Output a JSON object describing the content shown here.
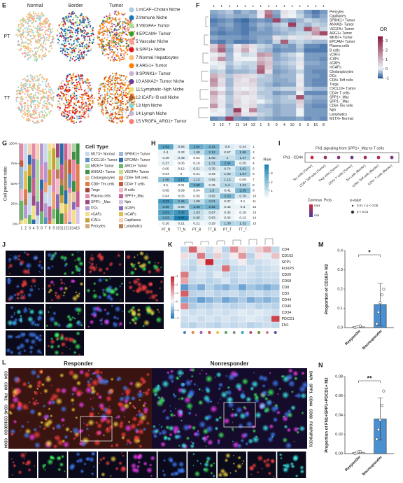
{
  "panels": {
    "E": "E",
    "F": "F",
    "G": "G",
    "H": "H",
    "I": "I",
    "J": "J",
    "K": "K",
    "L": "L",
    "M": "M",
    "N": "N"
  },
  "E": {
    "columns": [
      "Normal",
      "Border",
      "Tumor"
    ],
    "rows": [
      "PT",
      "TT"
    ],
    "niches": [
      {
        "name": "1:mCAF−Cholan Niche",
        "color": "#a6cee3"
      },
      {
        "name": "2:Immune Niche",
        "color": "#1f78b4"
      },
      {
        "name": "3:VEGFA+ Tumor",
        "color": "#b2df8a"
      },
      {
        "name": "4:EPCAM+ Tumor",
        "color": "#33a02c"
      },
      {
        "name": "5:Vascular Niche",
        "color": "#fb9a99"
      },
      {
        "name": "6:SPP1+ Niche",
        "color": "#e31a1c"
      },
      {
        "name": "7:Normal Hepatocytes",
        "color": "#fdbf6f"
      },
      {
        "name": "8:ARG1+ Tumor",
        "color": "#ff7f00"
      },
      {
        "name": "9:SPINK1+ Tumor",
        "color": "#cab2d6"
      },
      {
        "name": "10:ANXA2+ Tumor Niche",
        "color": "#6a3d9a"
      },
      {
        "name": "11:Lymphatic−Nph Niche",
        "color": "#e8e070"
      },
      {
        "name": "12:iCAFs−B cell Niche",
        "color": "#b15928"
      },
      {
        "name": "13:Nph Niche",
        "color": "#8dd3c7"
      },
      {
        "name": "14:Lymph Niche",
        "color": "#bebada"
      },
      {
        "name": "15:VRGFA_ARG1+ Tumor",
        "color": "#fb8072"
      }
    ]
  },
  "F": {
    "type": "heatmap",
    "legend_title": "OR",
    "clim": [
      -1,
      3.5
    ],
    "ticks": [
      -1,
      0,
      1,
      2,
      3
    ],
    "top_labels": [
      "1",
      "1",
      "1",
      "1",
      "1",
      "1",
      "1",
      "1",
      "1",
      "1",
      "1",
      "1",
      "1",
      "1",
      "1"
    ],
    "columns": [
      "2",
      "12",
      "7",
      "11",
      "14",
      "13",
      "1",
      "5",
      "9",
      "4",
      "10",
      "6",
      "3",
      "15",
      "8"
    ],
    "rows": [
      "Pericytes",
      "Capillaries",
      "SPINK1+ Tumor",
      "ANXA2+ Tumor",
      "VEGFA+ Tumor",
      "ARG1+ Tumor",
      "MKI67+ Tumor",
      "EPCAM+ Tumor",
      "Plasma cells",
      "B cells",
      "vCAFs",
      "iCAFs",
      "aCAFs",
      "mCAFs",
      "Cholangiocytes",
      "DCs",
      "CD8+ Teff cells",
      "Tregs",
      "CXCL10+ Tumor",
      "CD4+ T cells",
      "SPP1+_Mac",
      "SPP1−_Mac",
      "CD8+ Tex cells",
      "Nph",
      "Lymphatics",
      "M1TX+ Normal"
    ],
    "values": [
      [
        -0.5,
        -0.4,
        -0.3,
        -0.6,
        -0.4,
        -0.5,
        0.2,
        1.8,
        -0.5,
        0.3,
        0.1,
        -0.3,
        -0.6,
        -0.8,
        -0.6
      ],
      [
        -0.6,
        -0.5,
        -0.4,
        -0.5,
        -0.5,
        -0.4,
        0.1,
        2.2,
        -0.6,
        0.2,
        0.0,
        -0.2,
        -0.5,
        -0.7,
        -0.5
      ],
      [
        -0.8,
        -0.7,
        -0.6,
        -0.8,
        -0.9,
        -0.7,
        -0.6,
        -0.7,
        2.8,
        -0.5,
        -0.6,
        -0.4,
        -0.2,
        -0.3,
        -0.4
      ],
      [
        -0.7,
        -0.6,
        -0.5,
        -0.7,
        -0.8,
        -0.6,
        -0.4,
        -0.5,
        -0.3,
        -0.2,
        2.9,
        -0.3,
        -0.4,
        -0.2,
        -0.3
      ],
      [
        -0.6,
        -0.7,
        -0.6,
        -0.7,
        -0.8,
        -0.7,
        -0.5,
        -0.6,
        -0.4,
        -0.3,
        -0.4,
        -0.3,
        2.6,
        1.2,
        -0.2
      ],
      [
        -0.7,
        -0.8,
        -0.7,
        -0.7,
        -0.8,
        -0.6,
        -0.6,
        -0.6,
        -0.5,
        -0.4,
        -0.3,
        -0.2,
        -0.2,
        1.5,
        2.7
      ],
      [
        -0.5,
        -0.6,
        -0.6,
        -0.6,
        -0.7,
        -0.6,
        -0.5,
        -0.5,
        0.3,
        -0.2,
        0.2,
        -0.1,
        0.4,
        0.2,
        0.1
      ],
      [
        -0.7,
        -0.8,
        -0.6,
        -0.8,
        -0.8,
        -0.7,
        -0.5,
        -0.6,
        -0.2,
        2.4,
        -0.3,
        -0.2,
        -0.3,
        -0.4,
        -0.4
      ],
      [
        0.6,
        1.9,
        -0.4,
        0.2,
        0.8,
        0.3,
        -0.2,
        -0.3,
        -0.6,
        -0.5,
        -0.6,
        -0.3,
        -0.7,
        -0.7,
        -0.8
      ],
      [
        0.9,
        2.3,
        -0.5,
        0.3,
        1.2,
        0.2,
        -0.3,
        -0.4,
        -0.7,
        -0.6,
        -0.6,
        -0.4,
        -0.8,
        -0.8,
        -0.8
      ],
      [
        0.1,
        0.4,
        -0.4,
        0.0,
        -0.2,
        -0.1,
        1.5,
        1.2,
        -0.5,
        -0.3,
        -0.2,
        0.1,
        -0.6,
        -0.6,
        -0.6
      ],
      [
        0.3,
        1.6,
        -0.4,
        0.1,
        0.0,
        0.0,
        0.9,
        0.6,
        -0.5,
        -0.4,
        -0.3,
        -0.1,
        -0.6,
        -0.6,
        -0.7
      ],
      [
        0.0,
        0.2,
        -0.3,
        -0.1,
        -0.2,
        -0.2,
        1.3,
        0.8,
        -0.4,
        -0.3,
        -0.2,
        0.2,
        -0.5,
        -0.5,
        -0.6
      ],
      [
        -0.1,
        0.1,
        -0.4,
        -0.2,
        -0.3,
        -0.2,
        2.1,
        0.7,
        -0.5,
        -0.4,
        -0.3,
        0.1,
        -0.6,
        -0.6,
        -0.6
      ],
      [
        -0.3,
        -0.2,
        -0.5,
        -0.4,
        -0.4,
        -0.3,
        2.4,
        0.3,
        -0.6,
        -0.5,
        -0.4,
        -0.2,
        -0.6,
        -0.7,
        -0.7
      ],
      [
        1.1,
        0.6,
        -0.3,
        0.5,
        0.4,
        0.3,
        -0.2,
        -0.3,
        -0.5,
        -0.4,
        -0.4,
        0.1,
        -0.6,
        -0.6,
        -0.7
      ],
      [
        1.6,
        0.3,
        -0.4,
        0.4,
        0.2,
        0.6,
        -0.3,
        -0.3,
        -0.5,
        -0.5,
        -0.4,
        0.2,
        -0.6,
        -0.7,
        -0.7
      ],
      [
        1.4,
        0.4,
        -0.4,
        0.3,
        0.3,
        0.4,
        -0.3,
        -0.4,
        -0.6,
        -0.5,
        -0.5,
        0.1,
        -0.6,
        -0.7,
        -0.7
      ],
      [
        0.4,
        0.0,
        -0.3,
        0.2,
        0.0,
        0.2,
        -0.2,
        -0.3,
        -0.3,
        -0.2,
        -0.2,
        0.3,
        -0.3,
        -0.4,
        -0.4
      ],
      [
        1.3,
        0.5,
        -0.4,
        0.4,
        0.6,
        0.3,
        -0.3,
        -0.3,
        -0.6,
        -0.5,
        -0.5,
        0.0,
        -0.7,
        -0.7,
        -0.7
      ],
      [
        0.8,
        0.1,
        -0.3,
        0.3,
        0.1,
        0.2,
        -0.2,
        -0.3,
        -0.4,
        -0.3,
        -0.2,
        2.6,
        -0.4,
        -0.5,
        -0.5
      ],
      [
        0.7,
        0.2,
        -0.3,
        0.5,
        0.1,
        0.3,
        0.0,
        -0.2,
        -0.4,
        -0.3,
        -0.3,
        0.6,
        -0.5,
        -0.6,
        -0.6
      ],
      [
        1.5,
        0.2,
        -0.4,
        0.4,
        0.2,
        0.4,
        -0.3,
        -0.4,
        -0.5,
        -0.4,
        -0.4,
        0.4,
        -0.6,
        -0.7,
        -0.7
      ],
      [
        0.2,
        0.0,
        -0.3,
        2.9,
        0.1,
        1.8,
        -0.3,
        -0.3,
        -0.5,
        -0.4,
        -0.4,
        0.0,
        -0.6,
        -0.6,
        -0.6
      ],
      [
        0.0,
        0.1,
        -0.3,
        1.4,
        0.2,
        0.3,
        -0.2,
        -0.3,
        -0.5,
        -0.4,
        -0.4,
        0.0,
        -0.6,
        -0.6,
        -0.6
      ],
      [
        -0.7,
        -0.6,
        2.9,
        -0.6,
        -0.7,
        -0.6,
        -0.4,
        -0.5,
        -0.6,
        -0.6,
        -0.6,
        -0.5,
        -0.7,
        -0.6,
        -0.7
      ]
    ]
  },
  "G": {
    "y_label": "Cell percent ratio",
    "yticks": [
      {
        "value": 0,
        "label": "0%"
      },
      {
        "value": 25,
        "label": "25%"
      },
      {
        "value": 50,
        "label": "50%"
      },
      {
        "value": 75,
        "label": "75%"
      },
      {
        "value": 100,
        "label": "100%"
      }
    ],
    "ylim": [
      0,
      100
    ],
    "categories": [
      "1",
      "2",
      "3",
      "4",
      "5",
      "6",
      "7",
      "8",
      "9",
      "10",
      "11",
      "12",
      "13",
      "14",
      "15"
    ],
    "legend_title": "Cell Type",
    "cell_types": [
      {
        "name": "M1TX+ Normal",
        "color": "#c9d8ec"
      },
      {
        "name": "SPINK1+ Tumor",
        "color": "#9ab8d8"
      },
      {
        "name": "CXCL10+ Tumor",
        "color": "#5b8fc4"
      },
      {
        "name": "EPCAM+ Tumor",
        "color": "#2f6aa8"
      },
      {
        "name": "MKI67+ Tumor",
        "color": "#a8d5a0"
      },
      {
        "name": "ARG1+ Tumor",
        "color": "#6cb86a"
      },
      {
        "name": "ANXA2+ Tumor",
        "color": "#3d8f45"
      },
      {
        "name": "VEGFA+ Tumor",
        "color": "#c6e08a"
      },
      {
        "name": "Cholangiocytes",
        "color": "#e6c7a0"
      },
      {
        "name": "CD8+ Teff cells",
        "color": "#f0a070"
      },
      {
        "name": "CD8+ Tex cells",
        "color": "#e07a4a"
      },
      {
        "name": "CD4+ T cells",
        "color": "#c85a3a"
      },
      {
        "name": "Tregs",
        "color": "#a04030"
      },
      {
        "name": "B cells",
        "color": "#f2b8c6"
      },
      {
        "name": "Plasma cells",
        "color": "#e48aa8"
      },
      {
        "name": "SPP1+_Mac",
        "color": "#c66090"
      },
      {
        "name": "SPP1−_Mac",
        "color": "#9a4a80"
      },
      {
        "name": "Nph",
        "color": "#d9c3e6"
      },
      {
        "name": "DCs",
        "color": "#b496d0"
      },
      {
        "name": "aCAFs",
        "color": "#8a6ab8"
      },
      {
        "name": "vCAFs",
        "color": "#f3e08a"
      },
      {
        "name": "mCAFs",
        "color": "#e0c050"
      },
      {
        "name": "iCAFs",
        "color": "#c8a030"
      },
      {
        "name": "Capillaries",
        "color": "#f5d0b0"
      },
      {
        "name": "Pericytes",
        "color": "#d8a878"
      },
      {
        "name": "Lymphatics",
        "color": "#b88050"
      }
    ]
  },
  "H": {
    "columns": [
      "PT_N",
      "TT_N",
      "PT_B",
      "TT_B",
      "PT_T",
      "TT_T"
    ],
    "rows": [
      "1",
      "2",
      "3",
      "4",
      "5",
      "6",
      "7",
      "8",
      "9",
      "10",
      "11",
      "12",
      "13",
      "14",
      "15"
    ],
    "legend_title": "Roie",
    "clim": [
      0,
      4.04
    ],
    "ticks": [
      1,
      2,
      3
    ],
    "values": [
      [
        2.93,
        0.66,
        2.64,
        2.41,
        0.6,
        0.44
      ],
      [
        0.4,
        0.33,
        1.08,
        2.12,
        0.57,
        1.86
      ],
      [
        0.29,
        0.48,
        0.04,
        1.06,
        1,
        1.47
      ],
      [
        0.37,
        0.05,
        0.16,
        1.31,
        2.54,
        0.35
      ],
      [
        0.05,
        0.12,
        0.51,
        0.76,
        0.74,
        1.62
      ],
      [
        0.04,
        0,
        0.21,
        0.33,
        1.03,
        1.67
      ],
      [
        1.98,
        3.17,
        1.12,
        0.64,
        1.13,
        0.09
      ],
      [
        0.1,
        0.01,
        2.68,
        0.45,
        1.4,
        1.23
      ],
      [
        0.05,
        0.09,
        0.04,
        1.6,
        0.41,
        2.36
      ],
      [
        0.04,
        0.03,
        0.05,
        0.82,
        2.23,
        0.76
      ],
      [
        3.33,
        2.45,
        1.09,
        2.01,
        0.37,
        0.1
      ],
      [
        2.59,
        0.98,
        2.46,
        2.52,
        0.42,
        0.4
      ],
      [
        3.03,
        3.38,
        1.03,
        0.67,
        0.34,
        0.15
      ],
      [
        2.63,
        4.04,
        0.95,
        0.53,
        0.32,
        0.12
      ],
      [
        0.16,
        0.21,
        0.21,
        0.29,
        1.38,
        1.32
      ]
    ]
  },
  "I": {
    "title": "FN1 signaling from SPP1+_Mac to T cells",
    "pair": "FN1 - CD44",
    "targets": [
      "Tex cells (Tumor)",
      "CD8+ Teff cells (Tumor)",
      "Treg cells (Tumor)",
      "CD4+ T cells (Tumor)",
      "Tex cells (Border)",
      "CD8+ Teff cells (Border)",
      "CD4+ T cells (Border)"
    ],
    "prob": [
      0.9,
      0.6,
      0.5,
      0.3,
      0.7,
      0.8,
      0.4
    ],
    "legend_prob": "Commun. Prob.",
    "prob_max": "max",
    "prob_min": "min",
    "legend_p": "p-value",
    "p_levels": [
      "0.01 < p < 0.05",
      "p < 0.01"
    ]
  },
  "J": {
    "scale": "50 μm"
  },
  "K": {
    "rows": [
      "CD4",
      "CD163",
      "SPP1",
      "FOXP3",
      "CD20",
      "CD68",
      "CD8",
      "CD3",
      "CD44",
      "CD45",
      "CD34",
      "PDCD1",
      "FN1"
    ],
    "clim": [
      -2,
      3
    ],
    "ticks": [
      -2,
      -1,
      0,
      1,
      2,
      3
    ],
    "col_colors": [
      "#4a7ab8",
      "#e08a3a",
      "#9a5ab0",
      "#d04a4a",
      "#e8c040",
      "#5aa05a",
      "#8a8a8a",
      "#3aa0c0",
      "#b04a80",
      "#6a8a30",
      "#d07a9a",
      "#4a4ab0"
    ],
    "values": [
      [
        -0.5,
        2.1,
        0.3,
        -0.4,
        0.2,
        -0.6,
        1.5,
        0.4,
        -0.3,
        0.6,
        1.2,
        -0.5
      ],
      [
        0.4,
        -0.3,
        1.8,
        -0.5,
        0.6,
        -0.4,
        0.2,
        1.4,
        -0.6,
        0.3,
        -0.2,
        0.8
      ],
      [
        -0.3,
        -0.5,
        0.4,
        3.0,
        -0.4,
        -0.5,
        -0.3,
        0.2,
        -0.5,
        -0.4,
        -0.3,
        -0.2
      ],
      [
        -0.4,
        -0.6,
        -0.3,
        -0.5,
        -0.4,
        1.9,
        -0.5,
        -0.4,
        -0.3,
        -0.5,
        -0.4,
        -0.3
      ],
      [
        1.8,
        -0.4,
        -0.3,
        -0.5,
        -0.2,
        -0.4,
        -0.5,
        -0.3,
        -0.4,
        -0.5,
        -0.4,
        -0.4
      ],
      [
        1.2,
        -0.5,
        -0.4,
        -0.6,
        -0.5,
        -0.3,
        -0.6,
        -0.4,
        -0.5,
        -0.6,
        -0.5,
        -0.5
      ],
      [
        -1.5,
        -0.8,
        -1.2,
        -0.6,
        -0.9,
        -1.1,
        -0.7,
        -1.3,
        -0.8,
        -1.0,
        -1.2,
        -0.9
      ],
      [
        2.2,
        -0.6,
        -0.5,
        -0.4,
        -0.6,
        -0.5,
        -0.4,
        -0.6,
        -0.5,
        -0.4,
        -0.6,
        -0.5
      ],
      [
        -1.2,
        -0.9,
        -1.4,
        -1.1,
        -0.8,
        -1.3,
        -1.0,
        -0.7,
        -1.2,
        -0.9,
        -1.1,
        -0.8
      ],
      [
        1.6,
        -0.7,
        -0.5,
        -0.6,
        -0.4,
        -0.5,
        -0.6,
        -0.5,
        -0.4,
        -0.6,
        -0.5,
        -0.6
      ],
      [
        -0.3,
        -0.4,
        -0.3,
        -0.4,
        -0.3,
        -0.4,
        -0.3,
        -0.2,
        -0.3,
        -0.2,
        -0.3,
        -0.4
      ],
      [
        -0.4,
        -0.3,
        -0.4,
        -0.3,
        -0.4,
        -0.3,
        -0.4,
        -0.3,
        -0.2,
        -0.3,
        -0.4,
        2.6
      ],
      [
        -0.5,
        -0.6,
        -0.4,
        -0.5,
        -0.6,
        -0.4,
        -0.5,
        -0.4,
        -0.6,
        -0.5,
        -0.4,
        -0.5
      ]
    ]
  },
  "L": {
    "left_title": "Responder",
    "right_title": "Nonresponder",
    "left_channels": [
      "CD4",
      "CD8",
      "FN1",
      "CD45",
      "CD163",
      "CD3",
      "CD34"
    ],
    "right_channels": [
      "DAPI",
      "SPP1",
      "CD44",
      "CD68",
      "FOXP3",
      "PDCD1"
    ]
  },
  "M": {
    "type": "bar",
    "y_label": "Proportion of CD163+ M2",
    "categories": [
      "Responder",
      "Nonresponder"
    ],
    "values": [
      0.004,
      0.12
    ],
    "errors": [
      0.004,
      0.11
    ],
    "points": [
      [
        0.0,
        0.003,
        0.006,
        0.009
      ],
      [
        0.02,
        0.08,
        0.13,
        0.17,
        0.2
      ]
    ],
    "ylim": [
      0,
      0.4
    ],
    "yticks": [
      {
        "value": 0,
        "label": "0.0"
      },
      0.1,
      0.2,
      0.3,
      0.4
    ],
    "significance": "*",
    "colors": [
      "#ffffff",
      "#4a8fd0"
    ]
  },
  "N": {
    "type": "bar",
    "y_label": "Proportion of FN1+SPP1+PDCD1+ M2",
    "categories": [
      "Responder",
      "Nonresponder"
    ],
    "values": [
      0.001,
      0.036
    ],
    "errors": [
      0.001,
      0.022
    ],
    "points": [
      [
        0.0,
        0.001,
        0.002,
        0.002
      ],
      [
        0.015,
        0.025,
        0.035,
        0.05,
        0.065
      ]
    ],
    "ylim": [
      0,
      0.08
    ],
    "yticks": [
      {
        "value": 0,
        "label": "0.00"
      },
      0.02,
      0.04,
      0.06,
      0.08
    ],
    "significance": "**",
    "colors": [
      "#ffffff",
      "#4a8fd0"
    ]
  }
}
